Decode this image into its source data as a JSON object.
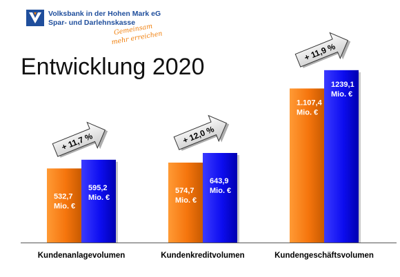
{
  "header": {
    "bank_name": "Volksbank in der Hohen Mark eG",
    "bank_subtitle": "Spar- und Darlehnskasse",
    "slogan_line1": "Gemeinsam",
    "slogan_line2": "mehr erreichen"
  },
  "colors": {
    "brand_blue": "#1f4e9c",
    "brand_orange": "#f07f0c",
    "bar_prev": "#f5750d",
    "bar_curr": "#0d0df0"
  },
  "chart_data": {
    "type": "bar",
    "title": "Entwicklung 2020",
    "categories": [
      "Kundenanlagevolumen",
      "Kundenkreditvolumen",
      "Kundengeschäftsvolumen"
    ],
    "series": [
      {
        "values": [
          532.7,
          574.7,
          1107.4
        ],
        "labels": [
          "532,7\nMio. €",
          "574,7\nMio. €",
          "1.107,4\nMio. €"
        ]
      },
      {
        "values": [
          595.2,
          643.9,
          1239.1
        ],
        "labels": [
          "595,2\nMio. €",
          "643,9\nMio. €",
          "1239,1\nMio. €"
        ]
      }
    ],
    "changes": [
      "+ 11,7 %",
      "+ 12,0 %",
      "+ 11,9 %"
    ],
    "grid": false,
    "legend": "none"
  }
}
